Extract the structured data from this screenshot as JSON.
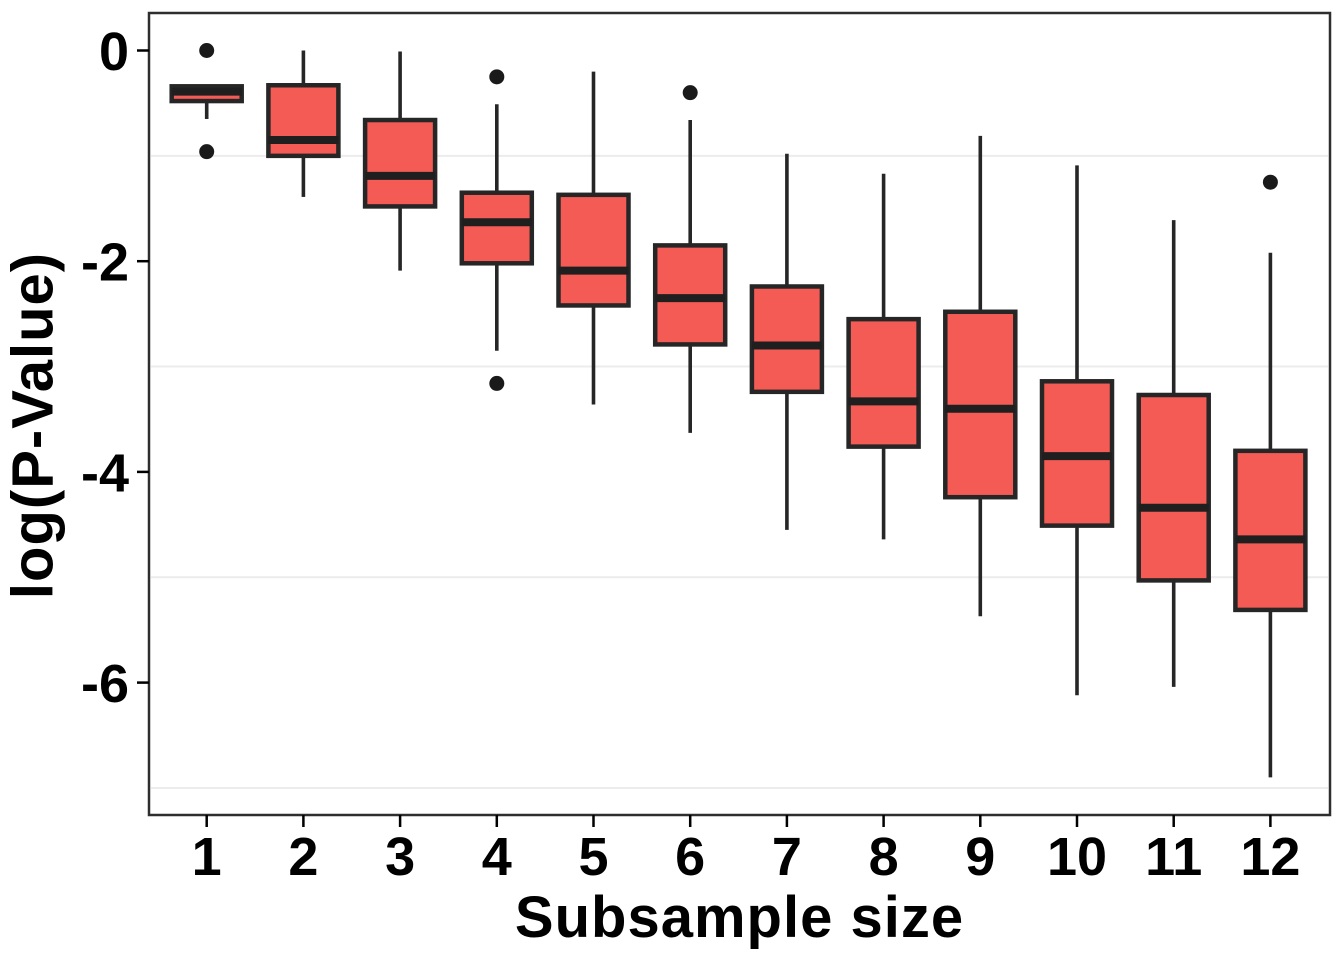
{
  "chart_data": {
    "type": "boxplot",
    "title": "",
    "xlabel": "Subsample size",
    "ylabel": "log(P-Value)",
    "x_categories": [
      "1",
      "2",
      "3",
      "4",
      "5",
      "6",
      "7",
      "8",
      "9",
      "10",
      "11",
      "12"
    ],
    "y_ticks": [
      0,
      -2,
      -4,
      -6
    ],
    "y_tick_labels": [
      "0",
      "-2",
      "-4",
      "-6"
    ],
    "minor_gridlines": [
      -1,
      -3,
      -5,
      -7
    ],
    "ylim": [
      0.36,
      -7.26
    ],
    "grid_on": true,
    "legend": "none",
    "colors": {
      "box_fill": "#F45B55",
      "box_stroke": "#262626",
      "median_stroke": "#1F1F1F",
      "outlier_fill": "#1A1A1A",
      "gridline": "#ECECEC",
      "panel_border": "#2E2E2E",
      "tick": "#000000",
      "text": "#000000"
    },
    "boxes": [
      {
        "category": "1",
        "whisker_high": -0.34,
        "q3": -0.34,
        "median": -0.39,
        "q1": -0.48,
        "whisker_low": -0.65,
        "outliers": [
          0.0,
          -0.96
        ]
      },
      {
        "category": "2",
        "whisker_high": 0.0,
        "q3": -0.33,
        "median": -0.85,
        "q1": -1.0,
        "whisker_low": -1.39,
        "outliers": []
      },
      {
        "category": "3",
        "whisker_high": -0.01,
        "q3": -0.66,
        "median": -1.19,
        "q1": -1.48,
        "whisker_low": -2.09,
        "outliers": []
      },
      {
        "category": "4",
        "whisker_high": -0.51,
        "q3": -1.35,
        "median": -1.63,
        "q1": -2.02,
        "whisker_low": -2.85,
        "outliers": [
          -0.25,
          -3.16
        ]
      },
      {
        "category": "5",
        "whisker_high": -0.2,
        "q3": -1.37,
        "median": -2.09,
        "q1": -2.42,
        "whisker_low": -3.36,
        "outliers": []
      },
      {
        "category": "6",
        "whisker_high": -0.66,
        "q3": -1.85,
        "median": -2.35,
        "q1": -2.79,
        "whisker_low": -3.63,
        "outliers": [
          -0.4
        ]
      },
      {
        "category": "7",
        "whisker_high": -0.98,
        "q3": -2.24,
        "median": -2.8,
        "q1": -3.24,
        "whisker_low": -4.55,
        "outliers": []
      },
      {
        "category": "8",
        "whisker_high": -1.17,
        "q3": -2.55,
        "median": -3.33,
        "q1": -3.76,
        "whisker_low": -4.64,
        "outliers": []
      },
      {
        "category": "9",
        "whisker_high": -0.81,
        "q3": -2.48,
        "median": -3.4,
        "q1": -4.24,
        "whisker_low": -5.37,
        "outliers": []
      },
      {
        "category": "10",
        "whisker_high": -1.09,
        "q3": -3.14,
        "median": -3.85,
        "q1": -4.51,
        "whisker_low": -6.12,
        "outliers": []
      },
      {
        "category": "11",
        "whisker_high": -1.61,
        "q3": -3.27,
        "median": -4.34,
        "q1": -5.03,
        "whisker_low": -6.04,
        "outliers": []
      },
      {
        "category": "12",
        "whisker_high": -1.92,
        "q3": -3.8,
        "median": -4.64,
        "q1": -5.31,
        "whisker_low": -6.9,
        "outliers": [
          -1.25
        ]
      }
    ]
  }
}
